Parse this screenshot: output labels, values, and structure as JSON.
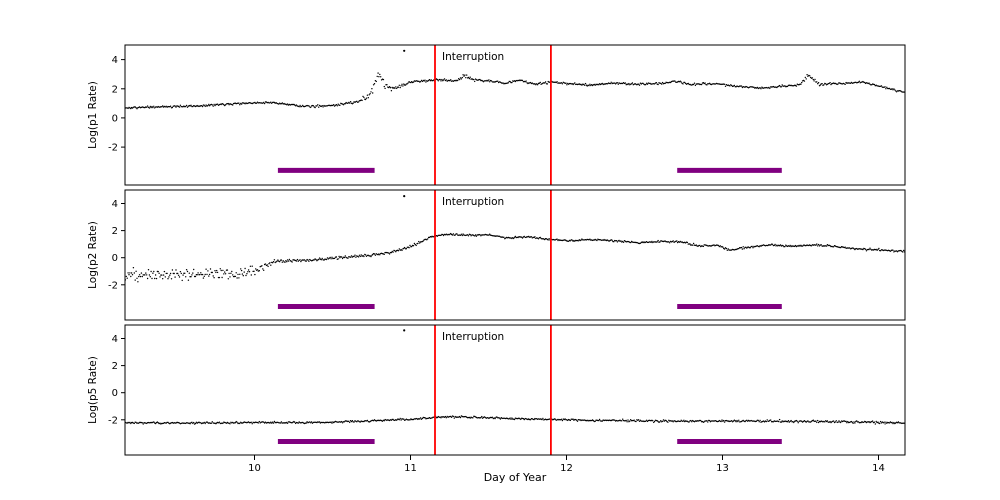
{
  "chart_data": {
    "type": "scatter",
    "title": "",
    "xlabel": "Day of Year",
    "xlim": [
      9.17,
      14.17
    ],
    "x_ticks": [
      10,
      11,
      12,
      13,
      14
    ],
    "grid": false,
    "legend": "none",
    "marker": {
      "color": "#000000",
      "radius": 0.7
    },
    "axis_color": "#000000",
    "background_color": "#ffffff",
    "points_per_panel": 880,
    "annotation": {
      "label": "Interruption",
      "color": "#ff0000",
      "vlines_x": [
        11.157,
        11.9
      ]
    },
    "event_bars": {
      "color": "#800080",
      "y": -3.6,
      "thickness": 5,
      "intervals": [
        [
          10.15,
          10.77
        ],
        [
          12.71,
          13.38
        ]
      ]
    },
    "panels": [
      {
        "ylabel": "Log(p1 Rate)",
        "y_ticks": [
          -2,
          0,
          2,
          4
        ],
        "ylim": [
          -4.6,
          5.0
        ],
        "outliers": [
          [
            10.96,
            4.6
          ]
        ],
        "trend": [
          [
            9.17,
            0.68,
            0.06
          ],
          [
            9.4,
            0.75,
            0.06
          ],
          [
            9.6,
            0.8,
            0.06
          ],
          [
            9.8,
            0.93,
            0.06
          ],
          [
            9.95,
            1.02,
            0.06
          ],
          [
            10.1,
            1.05,
            0.06
          ],
          [
            10.22,
            0.92,
            0.06
          ],
          [
            10.32,
            0.78,
            0.07
          ],
          [
            10.45,
            0.82,
            0.07
          ],
          [
            10.55,
            0.95,
            0.08
          ],
          [
            10.65,
            1.1,
            0.1
          ],
          [
            10.72,
            1.35,
            0.13
          ],
          [
            10.76,
            2.0,
            0.25
          ],
          [
            10.79,
            3.1,
            0.18
          ],
          [
            10.83,
            2.3,
            0.18
          ],
          [
            10.88,
            2.0,
            0.13
          ],
          [
            10.95,
            2.2,
            0.1
          ],
          [
            11.0,
            2.45,
            0.08
          ],
          [
            11.1,
            2.55,
            0.07
          ],
          [
            11.2,
            2.62,
            0.07
          ],
          [
            11.3,
            2.55,
            0.07
          ],
          [
            11.35,
            2.92,
            0.09
          ],
          [
            11.4,
            2.6,
            0.07
          ],
          [
            11.5,
            2.55,
            0.07
          ],
          [
            11.6,
            2.35,
            0.07
          ],
          [
            11.7,
            2.6,
            0.07
          ],
          [
            11.8,
            2.3,
            0.07
          ],
          [
            11.9,
            2.45,
            0.07
          ],
          [
            12.0,
            2.35,
            0.06
          ],
          [
            12.15,
            2.25,
            0.06
          ],
          [
            12.3,
            2.4,
            0.06
          ],
          [
            12.45,
            2.3,
            0.06
          ],
          [
            12.6,
            2.35,
            0.06
          ],
          [
            12.7,
            2.5,
            0.06
          ],
          [
            12.8,
            2.3,
            0.06
          ],
          [
            12.95,
            2.35,
            0.06
          ],
          [
            13.1,
            2.15,
            0.06
          ],
          [
            13.25,
            2.05,
            0.06
          ],
          [
            13.4,
            2.2,
            0.06
          ],
          [
            13.5,
            2.3,
            0.07
          ],
          [
            13.55,
            2.95,
            0.1
          ],
          [
            13.62,
            2.3,
            0.07
          ],
          [
            13.75,
            2.35,
            0.06
          ],
          [
            13.9,
            2.45,
            0.06
          ],
          [
            14.0,
            2.2,
            0.06
          ],
          [
            14.17,
            1.75,
            0.06
          ]
        ]
      },
      {
        "ylabel": "Log(p2 Rate)",
        "y_ticks": [
          -2,
          0,
          2,
          4
        ],
        "ylim": [
          -4.6,
          5.0
        ],
        "outliers": [
          [
            10.96,
            4.55
          ]
        ],
        "trend": [
          [
            9.17,
            -1.25,
            0.35
          ],
          [
            9.5,
            -1.3,
            0.35
          ],
          [
            9.8,
            -1.2,
            0.38
          ],
          [
            10.0,
            -1.0,
            0.4
          ],
          [
            10.08,
            -0.55,
            0.22
          ],
          [
            10.14,
            -0.25,
            0.1
          ],
          [
            10.3,
            -0.2,
            0.08
          ],
          [
            10.5,
            -0.05,
            0.08
          ],
          [
            10.7,
            0.15,
            0.08
          ],
          [
            10.85,
            0.35,
            0.09
          ],
          [
            10.95,
            0.6,
            0.09
          ],
          [
            11.05,
            1.1,
            0.09
          ],
          [
            11.15,
            1.6,
            0.07
          ],
          [
            11.25,
            1.72,
            0.06
          ],
          [
            11.4,
            1.65,
            0.06
          ],
          [
            11.5,
            1.7,
            0.06
          ],
          [
            11.62,
            1.45,
            0.06
          ],
          [
            11.75,
            1.55,
            0.06
          ],
          [
            11.9,
            1.35,
            0.06
          ],
          [
            12.0,
            1.25,
            0.06
          ],
          [
            12.15,
            1.35,
            0.06
          ],
          [
            12.3,
            1.25,
            0.06
          ],
          [
            12.45,
            1.1,
            0.06
          ],
          [
            12.6,
            1.2,
            0.06
          ],
          [
            12.75,
            1.15,
            0.06
          ],
          [
            12.85,
            0.85,
            0.07
          ],
          [
            12.95,
            0.95,
            0.07
          ],
          [
            13.05,
            0.55,
            0.08
          ],
          [
            13.15,
            0.75,
            0.07
          ],
          [
            13.3,
            0.95,
            0.06
          ],
          [
            13.45,
            0.85,
            0.06
          ],
          [
            13.6,
            0.95,
            0.06
          ],
          [
            13.75,
            0.8,
            0.06
          ],
          [
            13.9,
            0.6,
            0.07
          ],
          [
            14.05,
            0.55,
            0.07
          ],
          [
            14.17,
            0.45,
            0.07
          ]
        ]
      },
      {
        "ylabel": "Log(p5 Rate)",
        "y_ticks": [
          -2,
          0,
          2,
          4
        ],
        "ylim": [
          -4.6,
          5.0
        ],
        "outliers": [
          [
            10.96,
            4.6
          ]
        ],
        "trend": [
          [
            9.17,
            -2.2,
            0.06
          ],
          [
            9.6,
            -2.25,
            0.06
          ],
          [
            10.0,
            -2.2,
            0.06
          ],
          [
            10.4,
            -2.2,
            0.06
          ],
          [
            10.7,
            -2.1,
            0.06
          ],
          [
            11.0,
            -1.95,
            0.06
          ],
          [
            11.2,
            -1.8,
            0.06
          ],
          [
            11.4,
            -1.8,
            0.06
          ],
          [
            11.6,
            -1.9,
            0.06
          ],
          [
            11.8,
            -1.95,
            0.06
          ],
          [
            12.0,
            -2.0,
            0.06
          ],
          [
            12.3,
            -2.05,
            0.06
          ],
          [
            12.6,
            -2.1,
            0.07
          ],
          [
            13.0,
            -2.1,
            0.07
          ],
          [
            13.4,
            -2.1,
            0.07
          ],
          [
            13.8,
            -2.15,
            0.07
          ],
          [
            14.0,
            -2.2,
            0.07
          ],
          [
            14.17,
            -2.25,
            0.07
          ]
        ]
      }
    ]
  }
}
